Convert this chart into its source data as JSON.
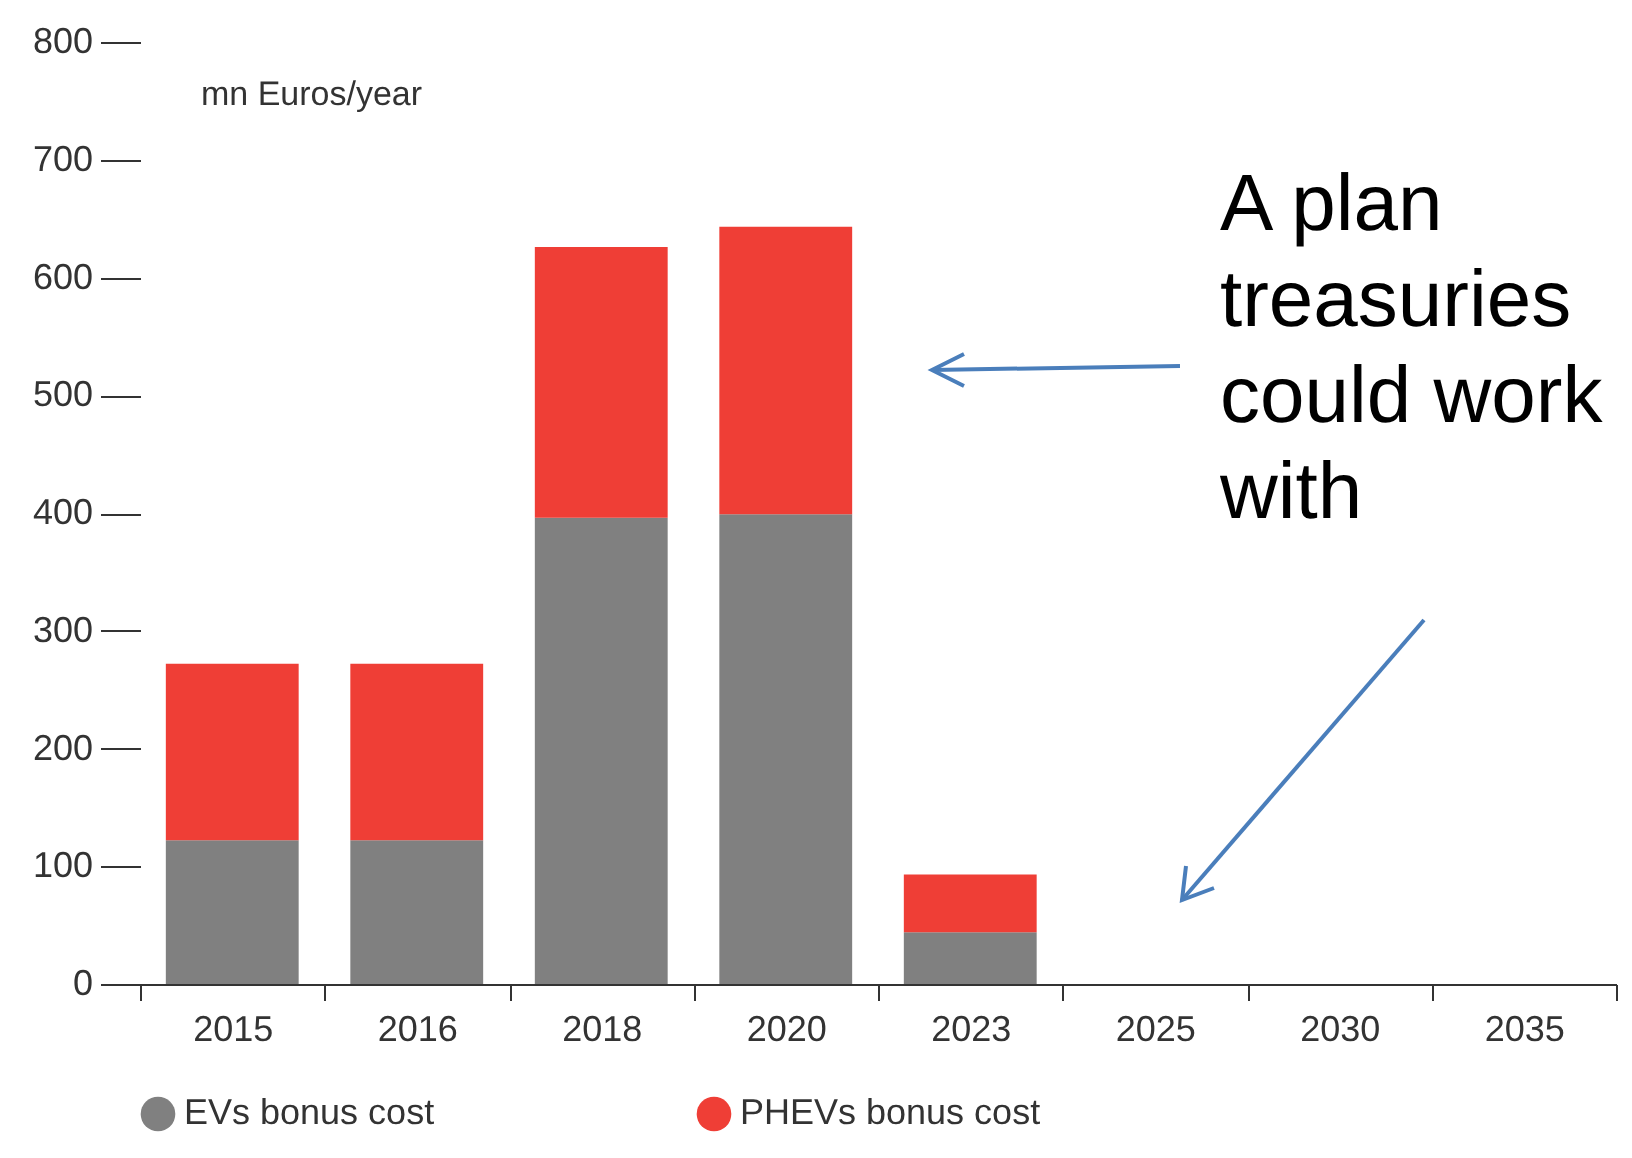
{
  "chart_data": {
    "type": "bar",
    "stacked": true,
    "ylabel": "mn Euros/year",
    "categories": [
      "2015",
      "2016",
      "2018",
      "2020",
      "2023",
      "2025",
      "2030",
      "2035"
    ],
    "series": [
      {
        "name": "EVs bonus cost",
        "color": "#808080",
        "values": [
          122,
          122,
          396,
          399,
          44,
          0,
          0,
          0
        ]
      },
      {
        "name": "PHEVs bonus cost",
        "color": "#ef3e36",
        "values": [
          150,
          150,
          230,
          244,
          49,
          0,
          0,
          0
        ]
      }
    ],
    "ylim": [
      0,
      800
    ],
    "yticks": [
      0,
      100,
      200,
      300,
      400,
      500,
      600,
      700,
      800
    ],
    "grid": false,
    "legend": "bottom left",
    "annotations": [
      "A plan treasuries could work with"
    ]
  }
}
